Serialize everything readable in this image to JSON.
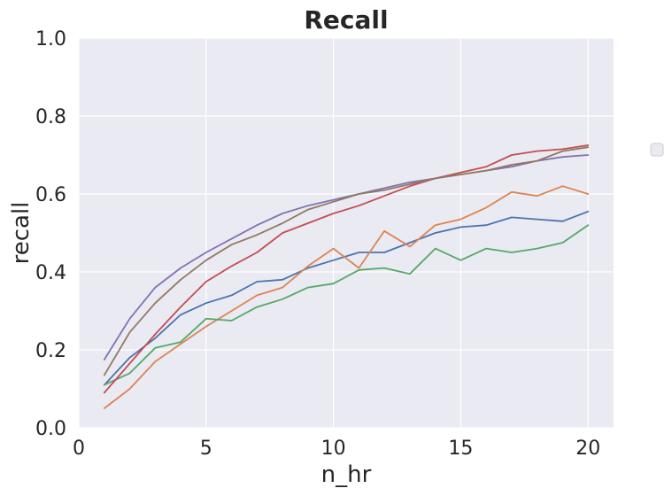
{
  "chart_data": {
    "type": "line",
    "title": "Recall",
    "xlabel": "n_hr",
    "ylabel": "recall",
    "xlim": [
      0,
      21
    ],
    "ylim": [
      0,
      1.0
    ],
    "xticks": [
      0,
      5,
      10,
      15,
      20
    ],
    "yticks": [
      0.0,
      0.2,
      0.4,
      0.6,
      0.8,
      1.0
    ],
    "xtick_labels": [
      "0",
      "5",
      "10",
      "15",
      "20"
    ],
    "ytick_labels": [
      "0.0",
      "0.2",
      "0.4",
      "0.6",
      "0.8",
      "1.0"
    ],
    "grid": true,
    "legend": "right, empty",
    "x": [
      1,
      2,
      3,
      4,
      5,
      6,
      7,
      8,
      9,
      10,
      11,
      12,
      13,
      14,
      15,
      16,
      17,
      18,
      19,
      20
    ],
    "series": [
      {
        "color": "#4c72b0",
        "values": [
          0.11,
          0.18,
          0.23,
          0.29,
          0.32,
          0.34,
          0.375,
          0.38,
          0.41,
          0.43,
          0.45,
          0.45,
          0.475,
          0.5,
          0.515,
          0.52,
          0.54,
          0.535,
          0.53,
          0.555
        ]
      },
      {
        "color": "#dd8452",
        "values": [
          0.05,
          0.1,
          0.17,
          0.215,
          0.26,
          0.3,
          0.34,
          0.36,
          0.415,
          0.46,
          0.41,
          0.505,
          0.465,
          0.52,
          0.535,
          0.565,
          0.605,
          0.595,
          0.62,
          0.6
        ]
      },
      {
        "color": "#55a868",
        "values": [
          0.11,
          0.14,
          0.205,
          0.22,
          0.28,
          0.275,
          0.31,
          0.33,
          0.36,
          0.37,
          0.405,
          0.41,
          0.395,
          0.46,
          0.43,
          0.46,
          0.45,
          0.46,
          0.475,
          0.52
        ]
      },
      {
        "color": "#c44e52",
        "values": [
          0.09,
          0.165,
          0.24,
          0.31,
          0.375,
          0.415,
          0.45,
          0.5,
          0.525,
          0.55,
          0.57,
          0.595,
          0.62,
          0.64,
          0.655,
          0.67,
          0.7,
          0.71,
          0.715,
          0.725
        ]
      },
      {
        "color": "#8172b3",
        "values": [
          0.175,
          0.28,
          0.36,
          0.41,
          0.45,
          0.485,
          0.52,
          0.55,
          0.57,
          0.585,
          0.6,
          0.615,
          0.63,
          0.64,
          0.65,
          0.66,
          0.67,
          0.685,
          0.695,
          0.7
        ]
      },
      {
        "color": "#937860",
        "values": [
          0.135,
          0.245,
          0.32,
          0.38,
          0.43,
          0.47,
          0.495,
          0.525,
          0.56,
          0.58,
          0.6,
          0.61,
          0.625,
          0.64,
          0.65,
          0.66,
          0.675,
          0.685,
          0.71,
          0.72
        ]
      }
    ]
  }
}
